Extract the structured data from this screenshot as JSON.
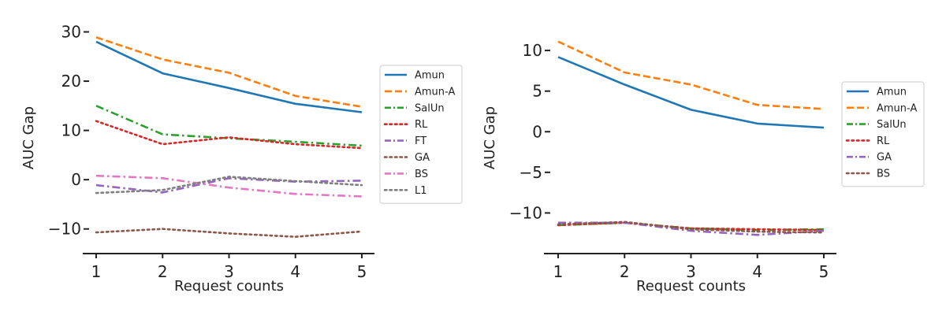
{
  "chart_data": [
    {
      "type": "line",
      "xlabel": "Request counts",
      "ylabel": "AUC Gap",
      "xlim": [
        1,
        5
      ],
      "ylim": [
        -15,
        32
      ],
      "x": [
        1,
        2,
        3,
        4,
        5
      ],
      "yticks": [
        -10,
        0,
        10,
        20,
        30
      ],
      "grid": false,
      "legend": "right",
      "series": [
        {
          "name": "Amun",
          "color": "#1f77b4",
          "style": "solid",
          "values": [
            28.0,
            21.6,
            18.6,
            15.4,
            13.7
          ]
        },
        {
          "name": "Amun-A",
          "color": "#ff7f0e",
          "style": "dashed",
          "values": [
            28.9,
            24.4,
            21.7,
            17.0,
            14.8
          ]
        },
        {
          "name": "SalUn",
          "color": "#2ca02c",
          "style": "dashdot",
          "values": [
            15.0,
            9.2,
            8.4,
            7.7,
            6.9
          ]
        },
        {
          "name": "RL",
          "color": "#d62728",
          "style": "dotted",
          "values": [
            11.9,
            7.2,
            8.6,
            7.2,
            6.4
          ]
        },
        {
          "name": "FT",
          "color": "#9467bd",
          "style": "dashdot",
          "values": [
            -1.1,
            -2.6,
            0.3,
            -0.4,
            -0.2
          ]
        },
        {
          "name": "GA",
          "color": "#8c564b",
          "style": "dotted",
          "values": [
            -10.7,
            -10.0,
            -10.9,
            -11.6,
            -10.5
          ]
        },
        {
          "name": "BS",
          "color": "#e377c2",
          "style": "dashdot",
          "values": [
            0.8,
            0.3,
            -1.6,
            -2.9,
            -3.4
          ]
        },
        {
          "name": "L1",
          "color": "#7f7f7f",
          "style": "dotted",
          "values": [
            -2.7,
            -2.1,
            0.6,
            -0.3,
            -1.1
          ]
        }
      ]
    },
    {
      "type": "line",
      "xlabel": "Request counts",
      "ylabel": "AUC Gap",
      "xlim": [
        1,
        5
      ],
      "ylim": [
        -15,
        13.5
      ],
      "x": [
        1,
        2,
        3,
        4,
        5
      ],
      "yticks": [
        -10,
        -5,
        0,
        5,
        10
      ],
      "grid": false,
      "legend": "right",
      "series": [
        {
          "name": "Amun",
          "color": "#1f77b4",
          "style": "solid",
          "values": [
            9.2,
            5.8,
            2.7,
            1.0,
            0.5
          ]
        },
        {
          "name": "Amun-A",
          "color": "#ff7f0e",
          "style": "dashed",
          "values": [
            11.1,
            7.3,
            5.8,
            3.3,
            2.8
          ]
        },
        {
          "name": "SalUn",
          "color": "#2ca02c",
          "style": "dashdot",
          "values": [
            -11.5,
            -11.2,
            -11.9,
            -12.1,
            -12.0
          ]
        },
        {
          "name": "RL",
          "color": "#d62728",
          "style": "dotted",
          "values": [
            -11.5,
            -11.2,
            -11.9,
            -12.0,
            -12.1
          ]
        },
        {
          "name": "GA",
          "color": "#9467bd",
          "style": "dashdot",
          "values": [
            -11.2,
            -11.2,
            -12.2,
            -12.7,
            -12.2
          ]
        },
        {
          "name": "BS",
          "color": "#8c564b",
          "style": "dotted",
          "values": [
            -11.4,
            -11.1,
            -12.0,
            -12.3,
            -12.4
          ]
        }
      ]
    }
  ]
}
